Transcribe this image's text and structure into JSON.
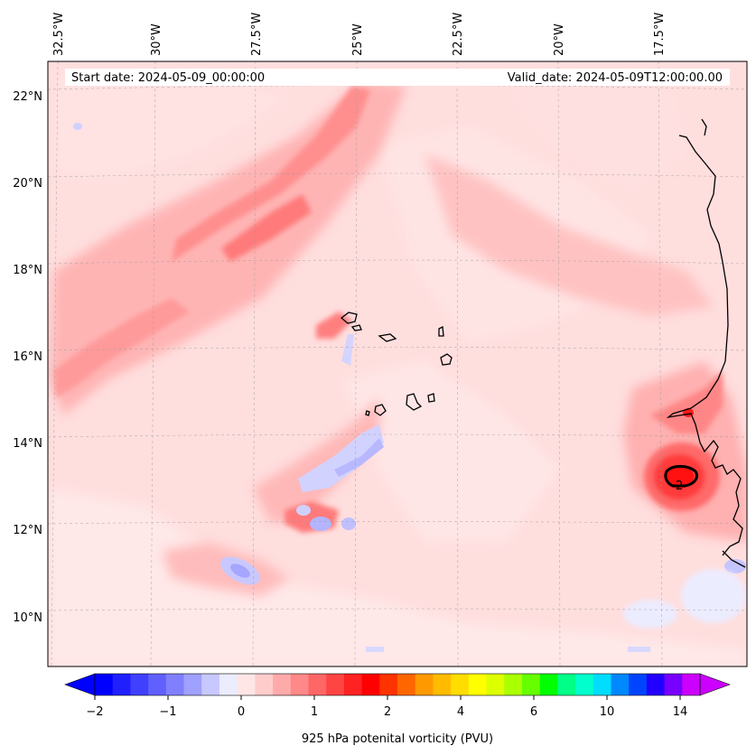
{
  "map": {
    "start_date_text": "Start date: 2024-05-09_00:00:00",
    "valid_date_text": "Valid_date: 2024-05-09T12:00:00.00",
    "top_labels": [
      "32.5°W",
      "30°W",
      "27.5°W",
      "25°W",
      "22.5°W",
      "20°W",
      "17.5°W"
    ],
    "left_labels": [
      "22°N",
      "20°N",
      "18°N",
      "16°N",
      "14°N",
      "12°N",
      "10°N"
    ],
    "contour_label": "2"
  },
  "colorbar": {
    "title": "925 hPa potenital vorticity (PVU)",
    "tick_labels": [
      "−2",
      "−1",
      "0",
      "1",
      "2",
      "4",
      "6",
      "10",
      "14"
    ],
    "colors": [
      "#0000ff",
      "#2020ff",
      "#4040ff",
      "#6060ff",
      "#8080ff",
      "#a0a0ff",
      "#c8c8ff",
      "#ececff",
      "#ffe6e6",
      "#ffcccc",
      "#ffaaaa",
      "#ff8888",
      "#ff6666",
      "#ff4444",
      "#ff2222",
      "#ff0000",
      "#ff3300",
      "#ff6600",
      "#ff9900",
      "#ffbb00",
      "#ffdd00",
      "#ffff00",
      "#ddff00",
      "#aaff00",
      "#66ff00",
      "#00ff00",
      "#00ff88",
      "#00ffcc",
      "#00ddff",
      "#0088ff",
      "#0044ff",
      "#2200ff",
      "#7700ff",
      "#cc00ff"
    ],
    "under_color": "#0000ff",
    "over_color": "#cc00ff"
  }
}
